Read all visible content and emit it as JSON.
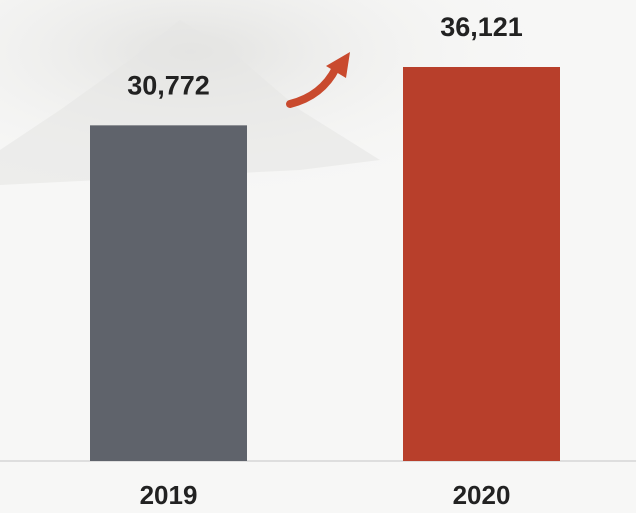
{
  "chart_data": {
    "type": "bar",
    "categories": [
      "2019",
      "2020"
    ],
    "values": [
      30772,
      36121
    ],
    "value_labels": [
      "30,772",
      "36,121"
    ],
    "colors": [
      "#5f636b",
      "#b83f2b"
    ]
  }
}
